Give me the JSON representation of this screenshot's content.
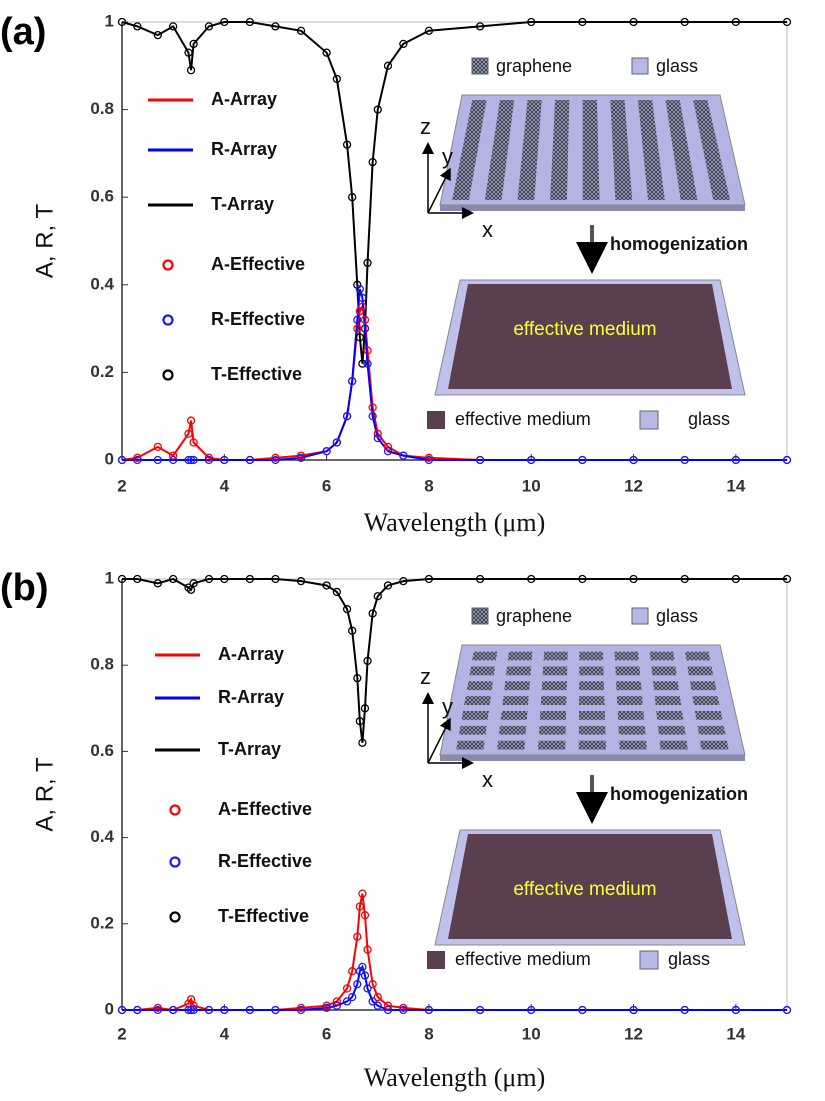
{
  "chart_data": [
    {
      "type": "line",
      "panel_label": "(a)",
      "xlabel": "Wavelength (μm)",
      "ylabel": "A, R, T",
      "x": [
        2,
        2.3,
        2.7,
        3,
        3.3,
        3.35,
        3.4,
        3.7,
        4,
        4.5,
        5,
        5.5,
        6,
        6.2,
        6.4,
        6.5,
        6.6,
        6.65,
        6.7,
        6.75,
        6.8,
        6.9,
        7,
        7.2,
        7.5,
        8,
        9,
        10,
        11,
        12,
        13,
        14,
        15
      ],
      "xlim": [
        2,
        15
      ],
      "xticks": [
        2,
        4,
        6,
        8,
        10,
        12,
        14
      ],
      "ylim": [
        0,
        1
      ],
      "yticks": [
        0,
        0.2,
        0.4,
        0.6,
        0.8,
        1
      ],
      "series": [
        {
          "name": "A-Array",
          "color": "#ff0000",
          "style": "line",
          "values": [
            0,
            0.005,
            0.03,
            0.01,
            0.06,
            0.09,
            0.04,
            0.005,
            0,
            0,
            0.005,
            0.01,
            0.02,
            0.04,
            0.1,
            0.18,
            0.3,
            0.34,
            0.35,
            0.32,
            0.25,
            0.12,
            0.06,
            0.03,
            0.01,
            0.005,
            0,
            0,
            0,
            0,
            0,
            0,
            0
          ]
        },
        {
          "name": "R-Array",
          "color": "#0000ff",
          "style": "line",
          "values": [
            0,
            0,
            0,
            0,
            0,
            0,
            0,
            0,
            0,
            0,
            0,
            0.005,
            0.02,
            0.04,
            0.1,
            0.18,
            0.32,
            0.39,
            0.37,
            0.3,
            0.22,
            0.1,
            0.05,
            0.02,
            0.01,
            0,
            0,
            0,
            0,
            0,
            0,
            0,
            0
          ]
        },
        {
          "name": "T-Array",
          "color": "#000000",
          "style": "line",
          "values": [
            1,
            0.99,
            0.97,
            0.99,
            0.93,
            0.89,
            0.95,
            0.99,
            1,
            1,
            0.99,
            0.98,
            0.93,
            0.87,
            0.72,
            0.6,
            0.4,
            0.28,
            0.22,
            0.3,
            0.45,
            0.68,
            0.8,
            0.9,
            0.95,
            0.98,
            0.99,
            1,
            1,
            1,
            1,
            1,
            1
          ]
        },
        {
          "name": "A-Effective",
          "color": "#ff0000",
          "style": "circle",
          "values": [
            0,
            0.005,
            0.03,
            0.01,
            0.06,
            0.09,
            0.04,
            0.005,
            0,
            0,
            0.005,
            0.01,
            0.02,
            0.04,
            0.1,
            0.18,
            0.3,
            0.34,
            0.35,
            0.32,
            0.25,
            0.12,
            0.06,
            0.03,
            0.01,
            0.005,
            0,
            0,
            0,
            0,
            0,
            0,
            0
          ]
        },
        {
          "name": "R-Effective",
          "color": "#1a1aff",
          "style": "circle",
          "values": [
            0,
            0,
            0,
            0,
            0,
            0,
            0,
            0,
            0,
            0,
            0,
            0.005,
            0.02,
            0.04,
            0.1,
            0.18,
            0.32,
            0.39,
            0.37,
            0.3,
            0.22,
            0.1,
            0.05,
            0.02,
            0.01,
            0,
            0,
            0,
            0,
            0,
            0,
            0,
            0
          ]
        },
        {
          "name": "T-Effective",
          "color": "#000000",
          "style": "circle",
          "values": [
            1,
            0.99,
            0.97,
            0.99,
            0.93,
            0.89,
            0.95,
            0.99,
            1,
            1,
            0.99,
            0.98,
            0.93,
            0.87,
            0.72,
            0.6,
            0.4,
            0.28,
            0.22,
            0.3,
            0.45,
            0.68,
            0.8,
            0.9,
            0.95,
            0.98,
            0.99,
            1,
            1,
            1,
            1,
            1,
            1
          ]
        }
      ],
      "inset": {
        "top_legend": [
          "graphene",
          "glass"
        ],
        "axes": [
          "z",
          "y",
          "x"
        ],
        "arrow_label": "homogenization",
        "medium_label": "effective medium",
        "bottom_legend": [
          "effective medium",
          "glass"
        ],
        "pattern": "strips"
      }
    },
    {
      "type": "line",
      "panel_label": "(b)",
      "xlabel": "Wavelength (μm)",
      "ylabel": "A, R, T",
      "x": [
        2,
        2.3,
        2.7,
        3,
        3.3,
        3.35,
        3.4,
        3.7,
        4,
        4.5,
        5,
        5.5,
        6,
        6.2,
        6.4,
        6.5,
        6.6,
        6.65,
        6.7,
        6.75,
        6.8,
        6.9,
        7,
        7.2,
        7.5,
        8,
        9,
        10,
        11,
        12,
        13,
        14,
        15
      ],
      "xlim": [
        2,
        15
      ],
      "xticks": [
        2,
        4,
        6,
        8,
        10,
        12,
        14
      ],
      "ylim": [
        0,
        1
      ],
      "yticks": [
        0,
        0.2,
        0.4,
        0.6,
        0.8,
        1
      ],
      "series": [
        {
          "name": "A-Array",
          "color": "#ff0000",
          "style": "line",
          "values": [
            0,
            0,
            0.005,
            0,
            0.015,
            0.025,
            0.01,
            0,
            0,
            0,
            0,
            0.005,
            0.01,
            0.02,
            0.05,
            0.09,
            0.17,
            0.24,
            0.27,
            0.22,
            0.14,
            0.06,
            0.03,
            0.01,
            0.005,
            0,
            0,
            0,
            0,
            0,
            0,
            0,
            0
          ]
        },
        {
          "name": "R-Array",
          "color": "#0000ff",
          "style": "line",
          "values": [
            0,
            0,
            0,
            0,
            0,
            0,
            0,
            0,
            0,
            0,
            0,
            0,
            0.005,
            0.01,
            0.02,
            0.03,
            0.06,
            0.09,
            0.1,
            0.08,
            0.05,
            0.02,
            0.01,
            0,
            0,
            0,
            0,
            0,
            0,
            0,
            0,
            0,
            0
          ]
        },
        {
          "name": "T-Array",
          "color": "#000000",
          "style": "line",
          "values": [
            1,
            1,
            0.99,
            1,
            0.98,
            0.975,
            0.99,
            1,
            1,
            1,
            1,
            0.995,
            0.985,
            0.97,
            0.93,
            0.88,
            0.77,
            0.67,
            0.62,
            0.7,
            0.81,
            0.92,
            0.96,
            0.985,
            0.995,
            1,
            1,
            1,
            1,
            1,
            1,
            1,
            1
          ]
        },
        {
          "name": "A-Effective",
          "color": "#ff0000",
          "style": "circle",
          "values": [
            0,
            0,
            0.005,
            0,
            0.015,
            0.025,
            0.01,
            0,
            0,
            0,
            0,
            0.005,
            0.01,
            0.02,
            0.05,
            0.09,
            0.17,
            0.24,
            0.27,
            0.22,
            0.14,
            0.06,
            0.03,
            0.01,
            0.005,
            0,
            0,
            0,
            0,
            0,
            0,
            0,
            0
          ]
        },
        {
          "name": "R-Effective",
          "color": "#1a1aff",
          "style": "circle",
          "values": [
            0,
            0,
            0,
            0,
            0,
            0,
            0,
            0,
            0,
            0,
            0,
            0,
            0.005,
            0.01,
            0.02,
            0.03,
            0.06,
            0.09,
            0.1,
            0.08,
            0.05,
            0.02,
            0.01,
            0,
            0,
            0,
            0,
            0,
            0,
            0,
            0,
            0,
            0
          ]
        },
        {
          "name": "T-Effective",
          "color": "#000000",
          "style": "circle",
          "values": [
            1,
            1,
            0.99,
            1,
            0.98,
            0.975,
            0.99,
            1,
            1,
            1,
            1,
            0.995,
            0.985,
            0.97,
            0.93,
            0.88,
            0.77,
            0.67,
            0.62,
            0.7,
            0.81,
            0.92,
            0.96,
            0.985,
            0.995,
            1,
            1,
            1,
            1,
            1,
            1,
            1,
            1
          ]
        }
      ],
      "inset": {
        "top_legend": [
          "graphene",
          "glass"
        ],
        "axes": [
          "z",
          "y",
          "x"
        ],
        "arrow_label": "homogenization",
        "medium_label": "effective medium",
        "bottom_legend": [
          "effective medium",
          "glass"
        ],
        "pattern": "squares"
      }
    }
  ]
}
